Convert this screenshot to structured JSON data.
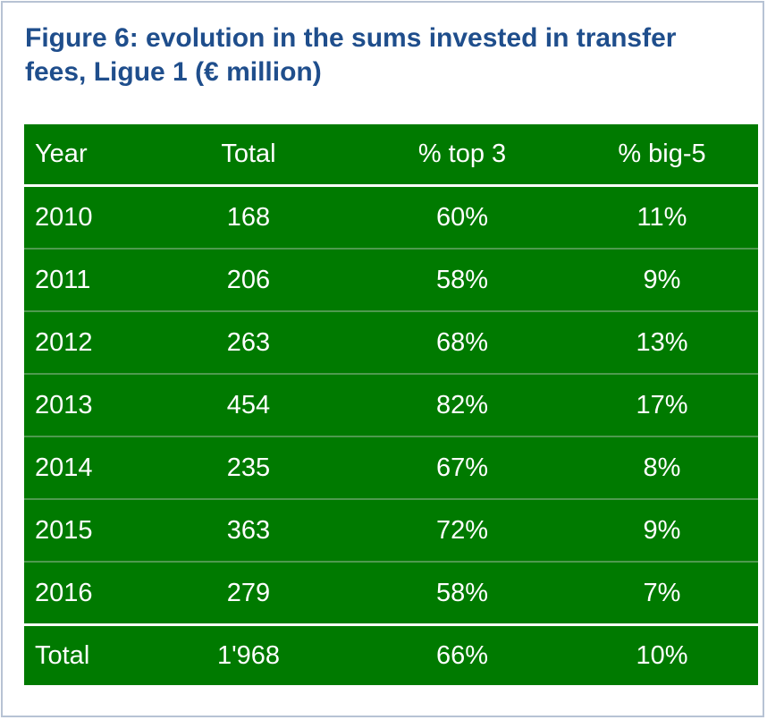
{
  "title": "Figure 6: evolution in the sums invested in transfer fees, Ligue 1 (€ million)",
  "chart_data": {
    "type": "table",
    "columns": [
      "Year",
      "Total",
      "% top 3",
      "% big-5"
    ],
    "rows": [
      [
        "2010",
        "168",
        "60%",
        "11%"
      ],
      [
        "2011",
        "206",
        "58%",
        "9%"
      ],
      [
        "2012",
        "263",
        "68%",
        "13%"
      ],
      [
        "2013",
        "454",
        "82%",
        "17%"
      ],
      [
        "2014",
        "235",
        "67%",
        "8%"
      ],
      [
        "2015",
        "363",
        "72%",
        "9%"
      ],
      [
        "2016",
        "279",
        "58%",
        "7%"
      ]
    ],
    "total_row": [
      "Total",
      "1'968",
      "66%",
      "10%"
    ]
  },
  "colors": {
    "title": "#1f4e8c",
    "table_bg": "#007a00",
    "table_text": "#ffffff",
    "frame_border": "#b7c3d4"
  }
}
